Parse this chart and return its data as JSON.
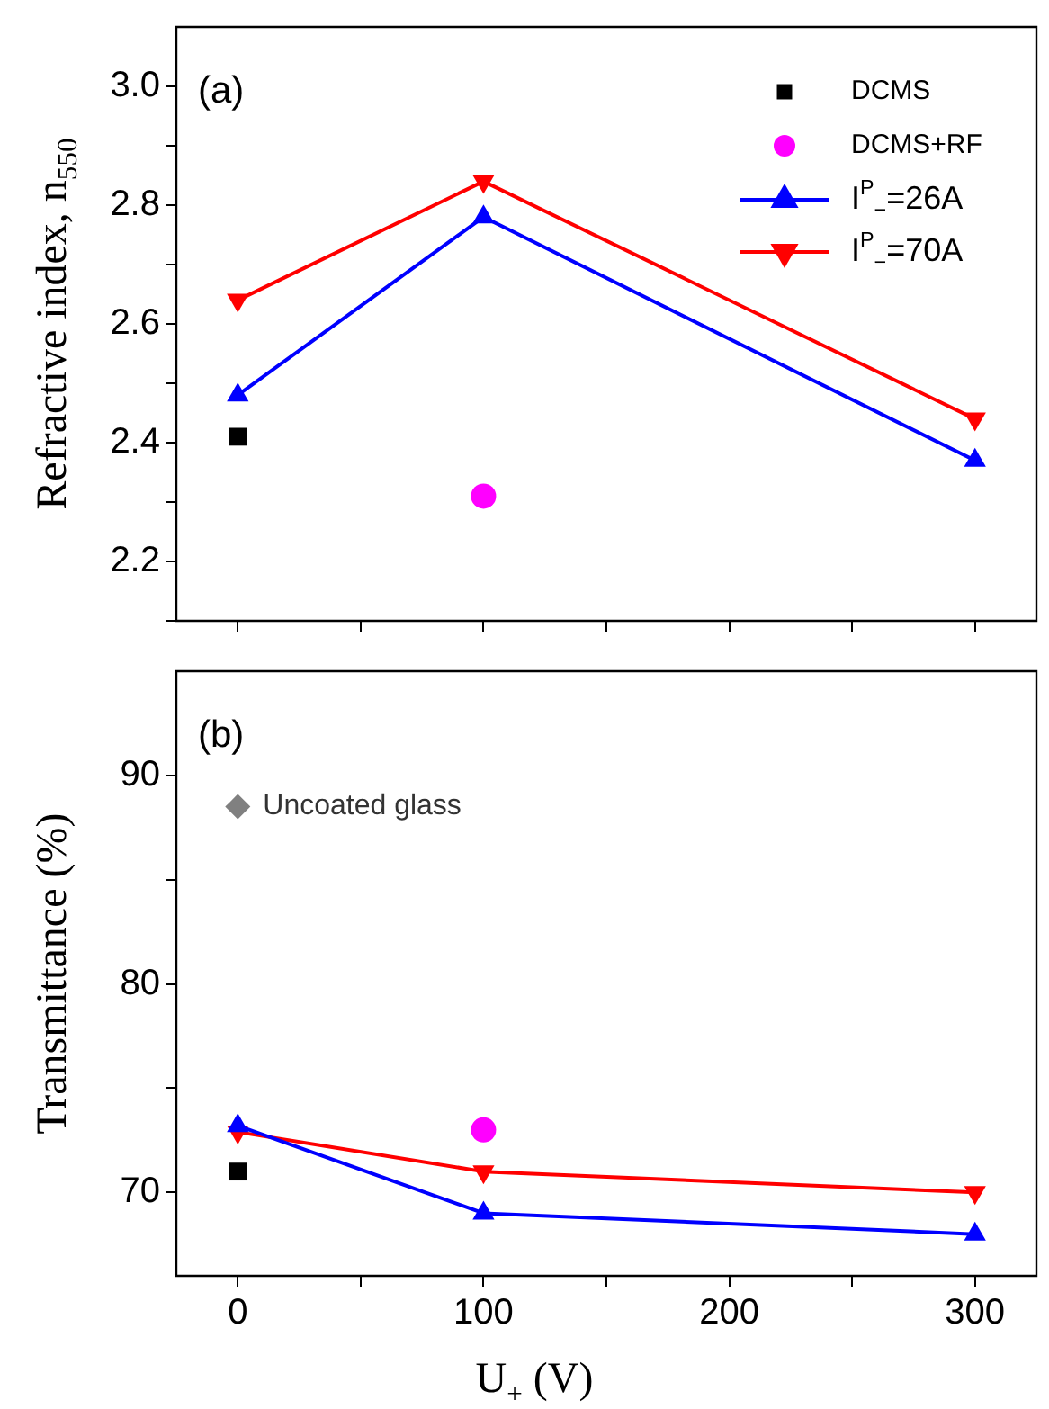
{
  "chart_data": [
    {
      "type": "line",
      "annotations": [
        "(a)"
      ],
      "ylabel": "Refractive index, n$_{550}$",
      "xlim": [
        -25,
        325
      ],
      "xticks": [
        {
          "value": 0,
          "label": null
        },
        {
          "value": 50,
          "label": null
        },
        {
          "value": 100,
          "label": null
        },
        {
          "value": 150,
          "label": null
        },
        {
          "value": 200,
          "label": null
        },
        {
          "value": 250,
          "label": null
        },
        {
          "value": 300,
          "label": null
        }
      ],
      "ylim": [
        2.1,
        3.1
      ],
      "yticks": [
        {
          "value": 2.1,
          "label": null
        },
        {
          "value": 2.2,
          "label": "2.2"
        },
        {
          "value": 2.3,
          "label": null
        },
        {
          "value": 2.4,
          "label": "2.4"
        },
        {
          "value": 2.5,
          "label": null
        },
        {
          "value": 2.6,
          "label": "2.6"
        },
        {
          "value": 2.7,
          "label": null
        },
        {
          "value": 2.8,
          "label": "2.8"
        },
        {
          "value": 2.9,
          "label": null
        },
        {
          "value": 3.0,
          "label": "3.0"
        }
      ],
      "tick_labels": "y",
      "legend": "top right",
      "series": [
        {
          "name": "DCMS",
          "type": "scatter",
          "marker": "square",
          "color": "#000000",
          "x": [
            0
          ],
          "values": [
            2.41
          ]
        },
        {
          "name": "DCMS+RF",
          "type": "scatter",
          "marker": "circle",
          "color": "#ff00ff",
          "x": [
            100
          ],
          "values": [
            2.31
          ]
        },
        {
          "name": "I$^{P}$$_{−}$=26A",
          "type": "line",
          "marker": "triangle",
          "color": "#0000ff",
          "x": [
            0,
            100,
            300
          ],
          "values": [
            2.48,
            2.78,
            2.37
          ]
        },
        {
          "name": "I$^{P}$$_{−}$=70A",
          "type": "line",
          "marker": "triangle-down",
          "color": "#ff0000",
          "x": [
            0,
            100,
            300
          ],
          "values": [
            2.64,
            2.84,
            2.44
          ]
        }
      ]
    },
    {
      "type": "line",
      "annotations": [
        "(b)"
      ],
      "xlabel": "U$_{+}$ (V)",
      "ylabel": "Transmittance (%)",
      "xlim": [
        -25,
        325
      ],
      "xticks": [
        0,
        {
          "value": 50,
          "label": null
        },
        100,
        {
          "value": 150,
          "label": null
        },
        200,
        {
          "value": 250,
          "label": null
        },
        300
      ],
      "ylim": [
        66,
        95
      ],
      "yticks": [
        70,
        {
          "value": 75,
          "label": null
        },
        80,
        {
          "value": 85,
          "label": null
        },
        90
      ],
      "series": [
        {
          "type": "scatter",
          "marker": "square",
          "color": "#000000",
          "x": [
            0
          ],
          "values": [
            71
          ]
        },
        {
          "type": "scatter",
          "marker": "circle",
          "color": "#ff00ff",
          "x": [
            100
          ],
          "values": [
            73
          ]
        },
        {
          "type": "line",
          "marker": "triangle",
          "color": "#0000ff",
          "x": [
            0,
            100,
            300
          ],
          "values": [
            73.2,
            69,
            68
          ]
        },
        {
          "type": "line",
          "marker": "triangle-down",
          "color": "#ff0000",
          "x": [
            0,
            100,
            300
          ],
          "values": [
            72.9,
            71,
            70
          ]
        },
        {
          "name": "Uncoated glass",
          "type": "scatter",
          "marker": "diamond",
          "color": "#808080",
          "x": [
            0
          ],
          "values": [
            88.5
          ]
        }
      ]
    }
  ]
}
